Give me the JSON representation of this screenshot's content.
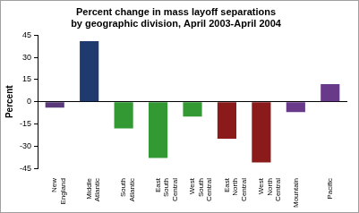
{
  "chart_data": {
    "type": "bar",
    "title": "Percent change in mass layoff separations by geographic division, April 2003-April 2004",
    "y_label": "Percent",
    "categories": [
      "New England",
      "Middle Atlantic",
      "South Atlantic",
      "East South Central",
      "West South Central",
      "East North Central",
      "West North Central",
      "Mountain",
      "Pacific"
    ],
    "values": [
      -4,
      41,
      -18,
      -38,
      -10,
      -25,
      -41,
      -7,
      12
    ],
    "colors": [
      "#5a3a7a",
      "#1f3a6e",
      "#339933",
      "#339933",
      "#339933",
      "#8b1a1a",
      "#8b1a1a",
      "#6a3a8a",
      "#6a3a8a"
    ],
    "ylim": [
      -45,
      45
    ],
    "yticks": [
      -45,
      -30,
      -15,
      0,
      15,
      30,
      45
    ],
    "grid": false
  }
}
